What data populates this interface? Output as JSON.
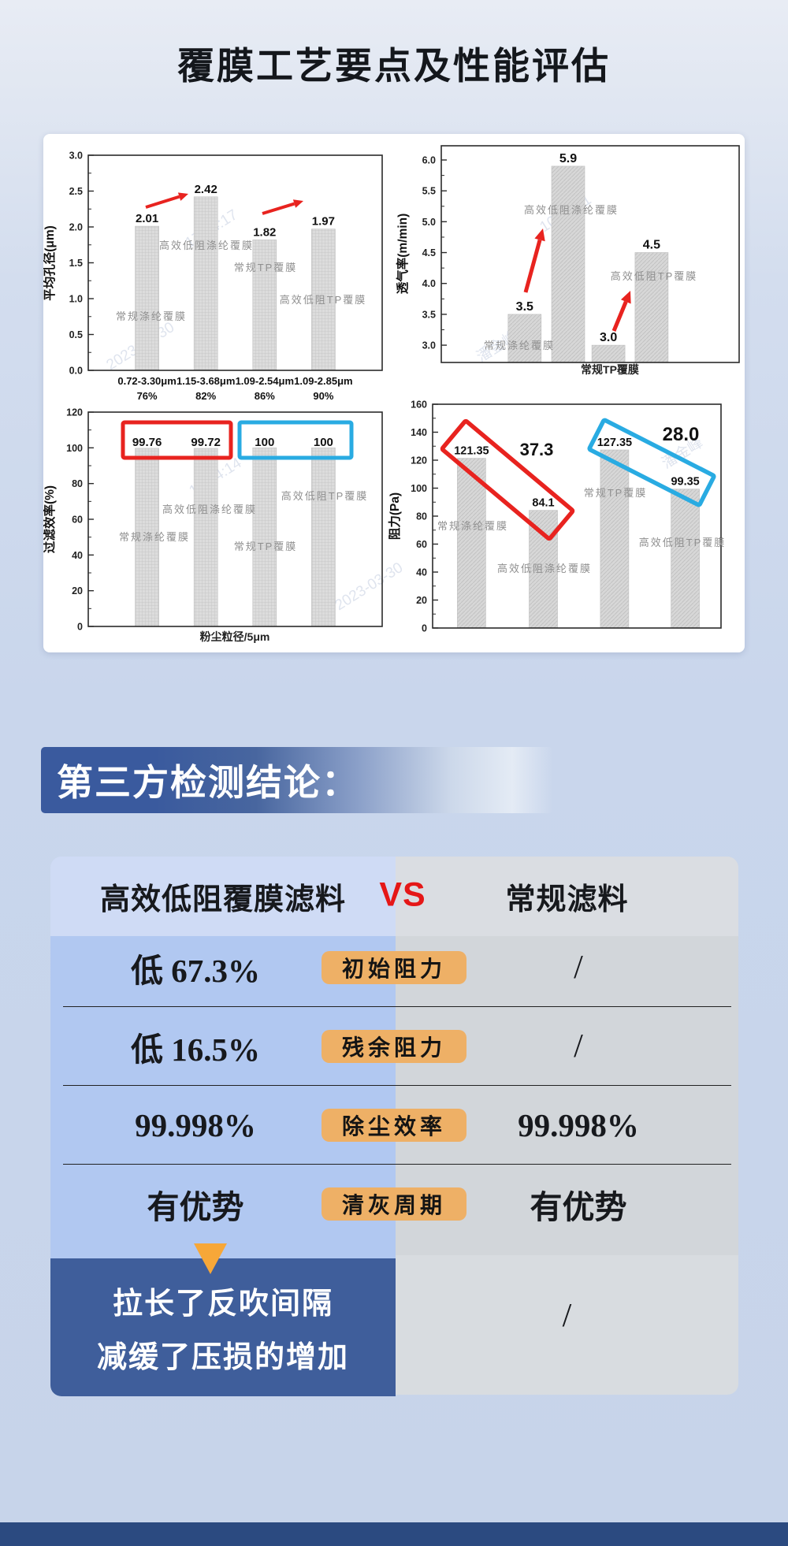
{
  "page": {
    "title": "覆膜工艺要点及性能评估"
  },
  "watermarks": [
    "17:04:17",
    "2023-03-30",
    "10:10:11",
    "潘金峰",
    "10:34:14",
    "潘金峰",
    "2023-03-30"
  ],
  "chart_data": [
    {
      "type": "bar",
      "ylabel": "平均孔径(μm)",
      "ylim": [
        0,
        3.0
      ],
      "ytick_labels": [
        "0.0",
        "0.5",
        "1.0",
        "1.5",
        "2.0",
        "2.5",
        "3.0"
      ],
      "categories": [
        "常规涤纶覆膜",
        "高效低阻涤纶覆膜",
        "常规TP覆膜",
        "高效低阻TP覆膜"
      ],
      "values": [
        2.01,
        2.42,
        1.82,
        1.97
      ],
      "value_labels": [
        "2.01",
        "2.42",
        "1.82",
        "1.97"
      ],
      "xtick_labels": [
        [
          "0.72-3.30μm",
          "76%"
        ],
        [
          "1.15-3.68μm",
          "82%"
        ],
        [
          "1.09-2.54μm",
          "86%"
        ],
        [
          "1.09-2.85μm",
          "90%"
        ]
      ],
      "legend_position": "none",
      "grid": false
    },
    {
      "type": "bar",
      "ylabel": "透气率(m/min)",
      "ylim": [
        2.72,
        6.23
      ],
      "ytick_labels": [
        "3.0",
        "3.5",
        "4.0",
        "4.5",
        "5.0",
        "5.5",
        "6.0"
      ],
      "categories": [
        "常规涤纶覆膜",
        "高效低阻涤纶覆膜",
        "常规TP覆膜",
        "高效低阻TP覆膜"
      ],
      "values": [
        3.5,
        5.9,
        3.0,
        4.5
      ],
      "value_labels": [
        "3.5",
        "5.9",
        "3.0",
        "4.5"
      ],
      "xlabel": "常规TP覆膜",
      "grid": false
    },
    {
      "type": "bar",
      "ylabel": "过滤效率(%)",
      "ylim": [
        0,
        120
      ],
      "ytick_labels": [
        "0",
        "20",
        "40",
        "60",
        "80",
        "100",
        "120"
      ],
      "categories": [
        "常规涤纶覆膜",
        "高效低阻涤纶覆膜",
        "常规TP覆膜",
        "高效低阻TP覆膜"
      ],
      "values": [
        99.76,
        99.72,
        100,
        100
      ],
      "value_labels": [
        "99.76",
        "99.72",
        "100",
        "100"
      ],
      "xlabel": "粉尘粒径/5μm",
      "grid": false
    },
    {
      "type": "bar",
      "ylabel": "阻力(Pa)",
      "ylim": [
        0,
        160
      ],
      "ytick_labels": [
        "0",
        "20",
        "40",
        "60",
        "80",
        "100",
        "120",
        "140",
        "160"
      ],
      "categories": [
        "常规涤纶覆膜",
        "高效低阻涤纶覆膜",
        "常规TP覆膜",
        "高效低阻TP覆膜"
      ],
      "values": [
        121.35,
        84.1,
        127.35,
        99.35
      ],
      "value_labels": [
        "121.35",
        "84.1",
        "127.35",
        "99.35"
      ],
      "annotations": [
        "37.3",
        "28.0"
      ],
      "grid": false
    }
  ],
  "conclusion": {
    "banner": "第三方检测结论："
  },
  "comparison": {
    "left_header": "高效低阻覆膜滤料",
    "vs": "VS",
    "right_header": "常规滤料",
    "rows": [
      {
        "left": "低 67.3%",
        "badge": "初始阻力",
        "right": "/"
      },
      {
        "left": "低 16.5%",
        "badge": "残余阻力",
        "right": "/"
      },
      {
        "left": "99.998%",
        "badge": "除尘效率",
        "right": "99.998%"
      },
      {
        "left": "有优势",
        "badge": "清灰周期",
        "right": "有优势"
      }
    ],
    "highlight": {
      "line1": "拉长了反吹间隔",
      "line2": "减缓了压损的增加",
      "right": "/"
    }
  },
  "colors": {
    "accent_red": "#e8231f",
    "accent_blue": "#29abe2",
    "vs_red": "#e51717",
    "badge_orange": "#eeb066",
    "dark_blue_box": "#3f5e9b",
    "banner_blue": "#3a5a9e",
    "footer_blue": "#2b4a80",
    "left_column_blue": "#b1c8f1",
    "right_column_gray": "#d2d6da",
    "bar_gray": "#dcdcdc",
    "gray_label": "#8f8f8f"
  }
}
